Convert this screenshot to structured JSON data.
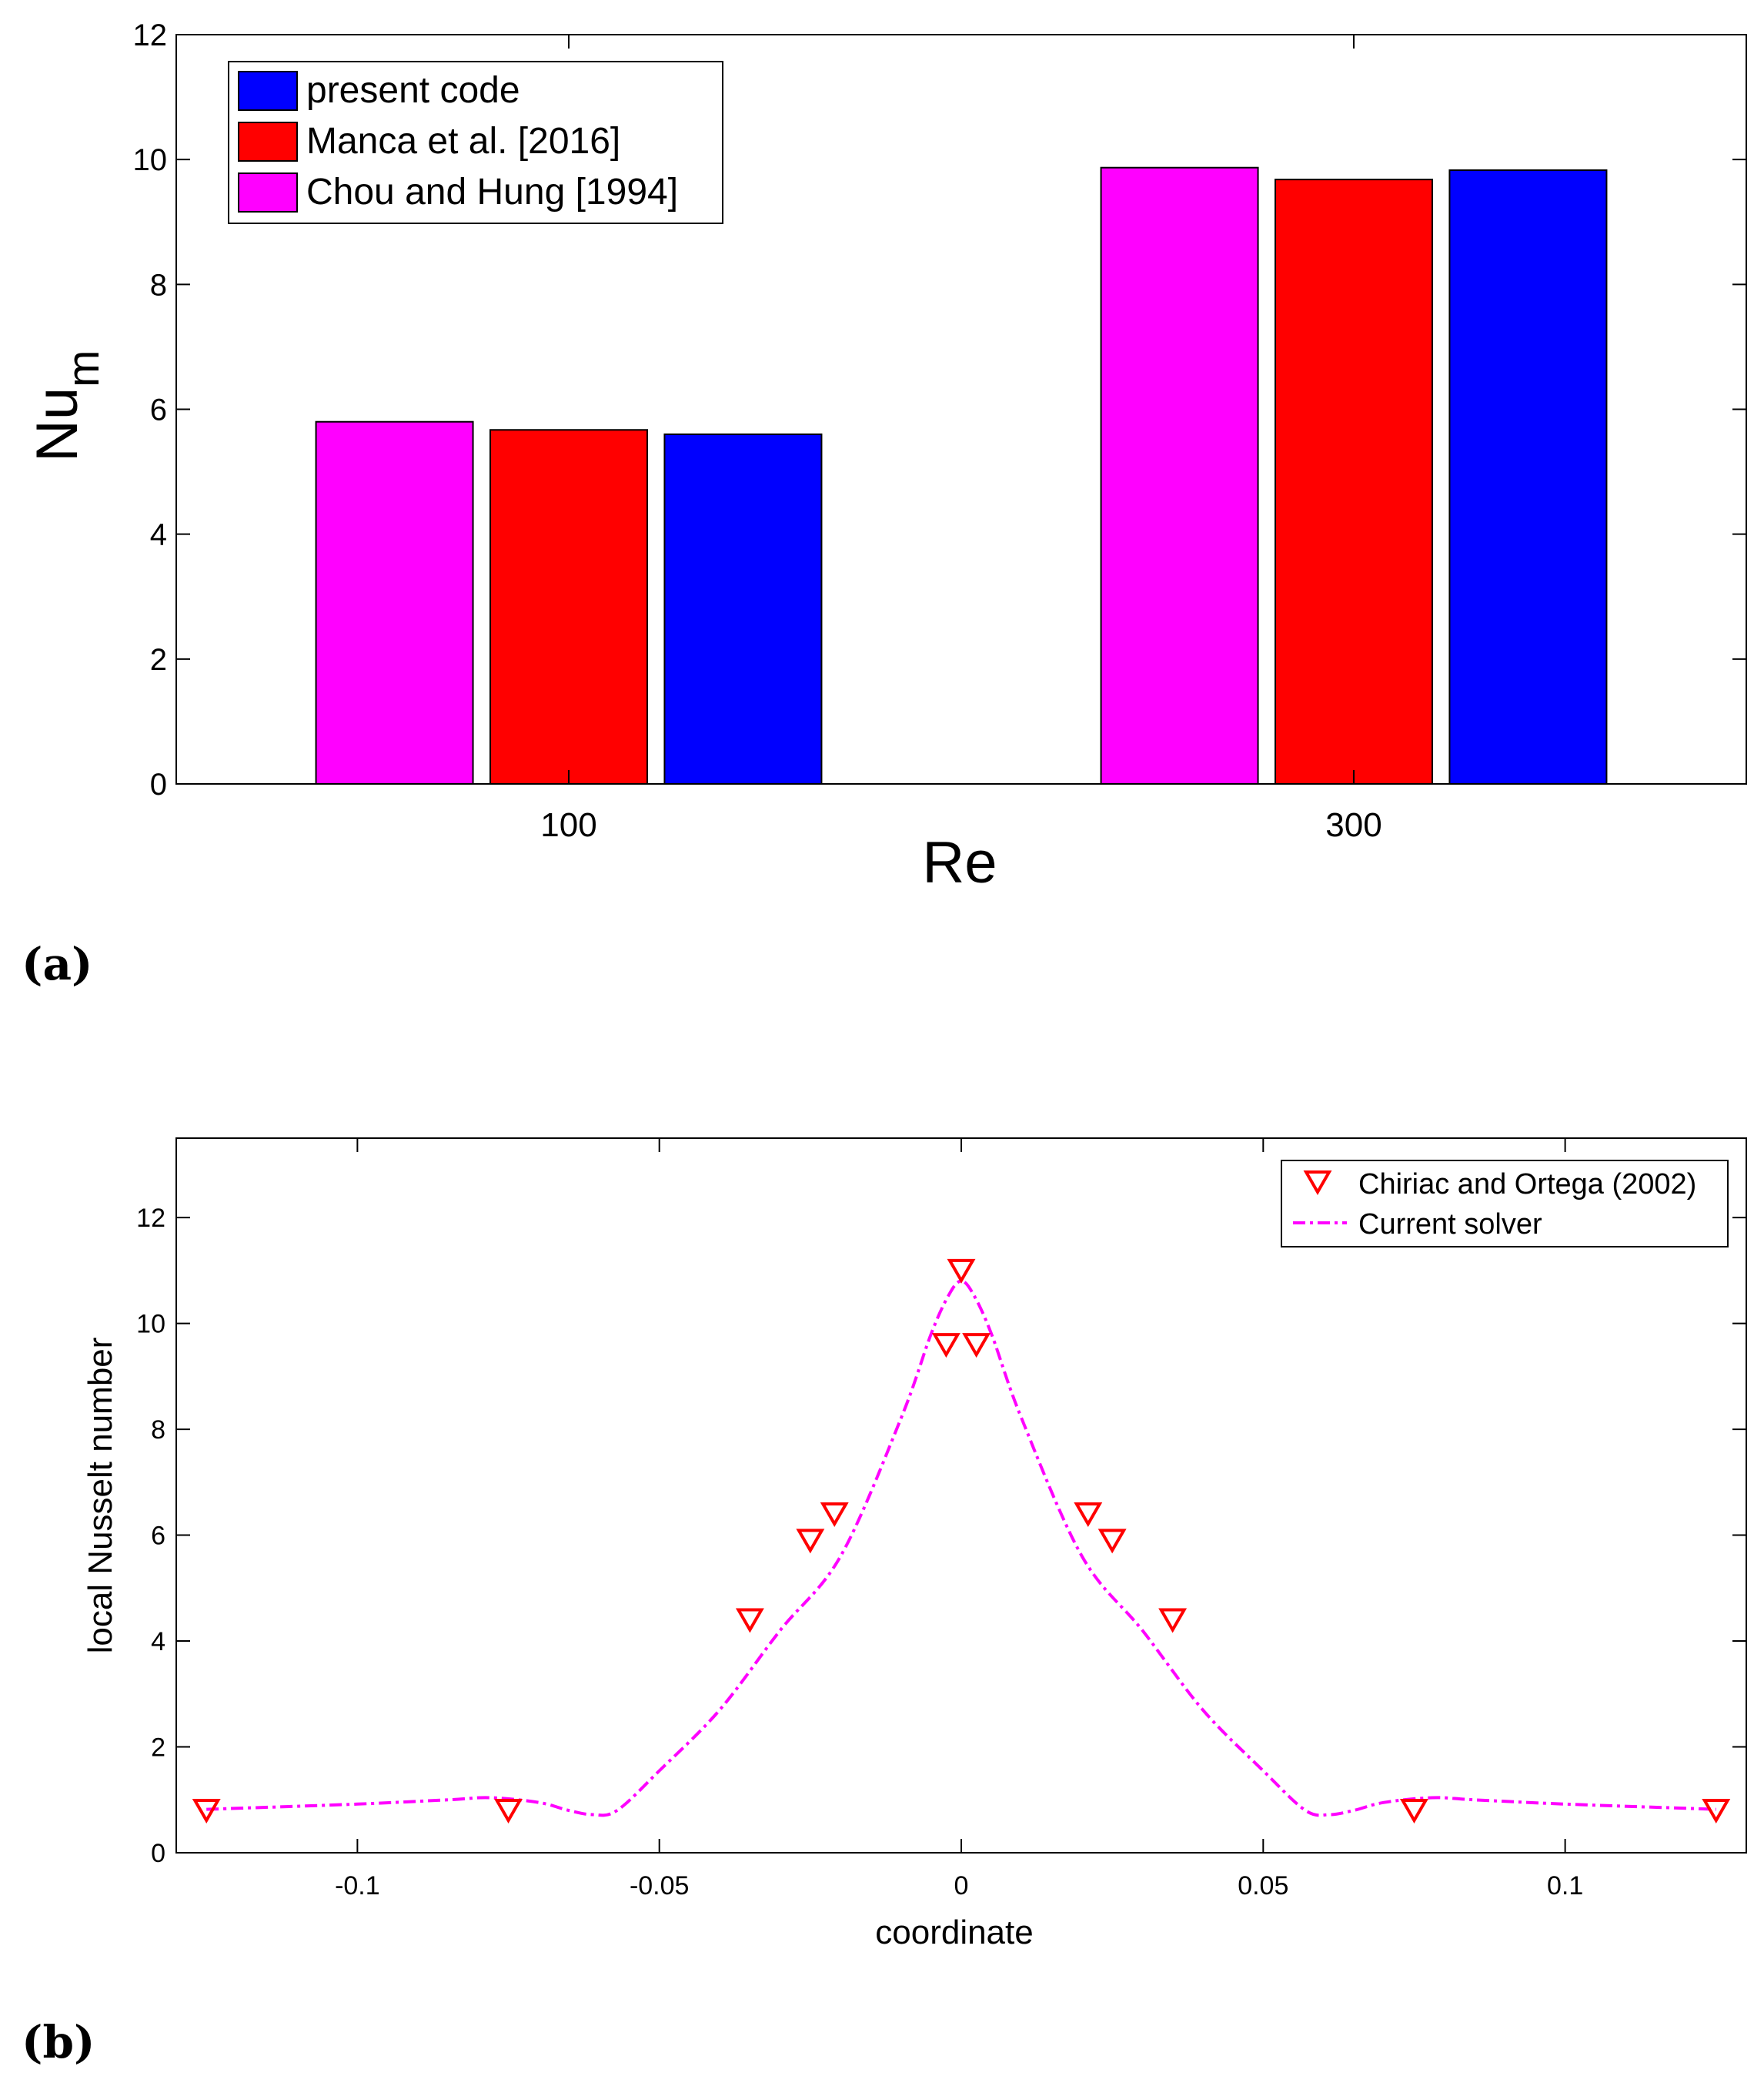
{
  "panels": {
    "a_label": "(a)",
    "b_label": "(b)"
  },
  "chart_data": [
    {
      "type": "bar",
      "categories": [
        "100",
        "300"
      ],
      "series": [
        {
          "name": "Chou and Hung [1994]",
          "color": "#ff00ff",
          "values": [
            5.8,
            9.87
          ]
        },
        {
          "name": "Manca et al. [2016]",
          "color": "#ff0000",
          "values": [
            5.67,
            9.68
          ]
        },
        {
          "name": "present code",
          "color": "#0000ff",
          "values": [
            5.6,
            9.83
          ]
        }
      ],
      "legend_order": [
        "present code",
        "Manca et al. [2016]",
        "Chou and Hung [1994]"
      ],
      "legend_position": "top-left",
      "xlabel": "Re",
      "ylabel_main": "Nu",
      "ylabel_sub": "m",
      "ylim": [
        0,
        12
      ],
      "yticks": [
        "0",
        "2",
        "4",
        "6",
        "8",
        "10",
        "12"
      ]
    },
    {
      "type": "scatter",
      "series": [
        {
          "name": "Chiriac and Ortega (2002)",
          "marker": "triangle-down",
          "color": "#ff0000",
          "x": [
            -0.125,
            -0.075,
            -0.035,
            -0.025,
            -0.021,
            -0.0025,
            0.0,
            0.0025,
            0.021,
            0.025,
            0.035,
            0.075,
            0.125
          ],
          "y": [
            0.8,
            0.8,
            4.4,
            5.9,
            6.4,
            9.6,
            11.0,
            9.6,
            6.4,
            5.9,
            4.4,
            0.8,
            0.8
          ]
        },
        {
          "name": "Current solver",
          "style": "dash-dot line",
          "color": "#ff00ff",
          "x": [
            -0.125,
            -0.1,
            -0.085,
            -0.078,
            -0.07,
            -0.065,
            -0.061,
            -0.057,
            -0.05,
            -0.04,
            -0.03,
            -0.02,
            -0.01,
            -0.005,
            -0.002,
            0.0,
            0.002,
            0.005,
            0.01,
            0.02,
            0.03,
            0.04,
            0.05,
            0.057,
            0.061,
            0.065,
            0.07,
            0.078,
            0.085,
            0.1,
            0.125
          ],
          "y": [
            0.82,
            0.92,
            1.0,
            1.04,
            0.95,
            0.8,
            0.72,
            0.8,
            1.55,
            2.7,
            4.2,
            5.6,
            8.2,
            9.8,
            10.55,
            10.8,
            10.55,
            9.8,
            8.2,
            5.6,
            4.2,
            2.7,
            1.55,
            0.8,
            0.72,
            0.8,
            0.95,
            1.04,
            1.0,
            0.92,
            0.82
          ]
        }
      ],
      "xlabel": "coordinate",
      "ylabel": "local Nusselt number",
      "xlim": [
        -0.13,
        0.13
      ],
      "ylim": [
        0,
        13.5
      ],
      "xticks": [
        -0.1,
        -0.05,
        0,
        0.05,
        0.1
      ],
      "xtick_labels": [
        "-0.1",
        "-0.05",
        "0",
        "0.05",
        "0.1"
      ],
      "yticks": [
        0,
        2,
        4,
        6,
        8,
        10,
        12
      ],
      "ytick_labels": [
        "0",
        "2",
        "4",
        "6",
        "8",
        "10",
        "12"
      ],
      "legend_position": "top-right"
    }
  ]
}
